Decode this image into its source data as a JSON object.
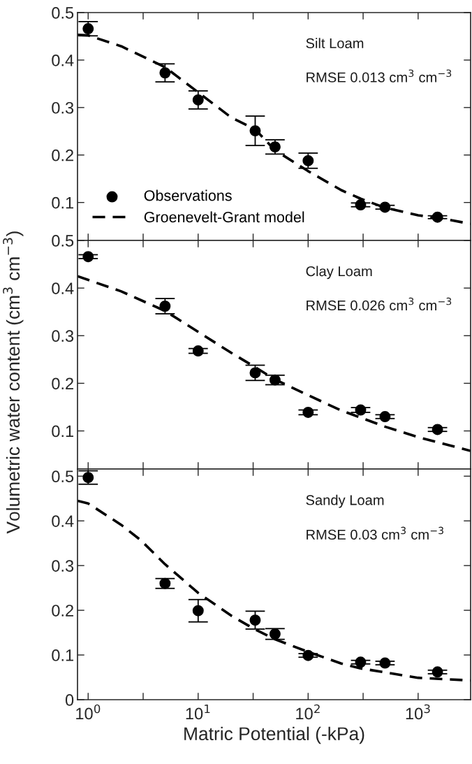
{
  "chart_data": [
    {
      "type": "scatter",
      "annotations": [
        "Silt Loam",
        "RMSE 0.013 cm$^{3}$ cm$^{−3}$"
      ],
      "log": "x",
      "xlim": [
        0.8,
        3000
      ],
      "ylim": [
        0.02,
        0.5
      ],
      "xticks": [
        {
          "value": 1,
          "label": null
        },
        {
          "value": 3.162,
          "label": null
        },
        {
          "value": 10,
          "label": null
        },
        {
          "value": 31.62,
          "label": null
        },
        {
          "value": 100,
          "label": null
        },
        {
          "value": 316.2,
          "label": null
        },
        {
          "value": 1000,
          "label": null
        }
      ],
      "yticks": [
        0.1,
        0.2,
        0.3,
        0.4,
        0.5
      ],
      "tick_labels": "y",
      "legend": "bottom left",
      "grid": false,
      "series": [
        {
          "name": "Observations",
          "color": "#000000",
          "marker": "circle",
          "x": [
            1,
            5,
            10,
            33,
            50,
            100,
            300,
            500,
            1500
          ],
          "values": [
            0.466,
            0.373,
            0.316,
            0.251,
            0.217,
            0.188,
            0.095,
            0.09,
            0.069
          ],
          "errors": [
            0.015,
            0.019,
            0.019,
            0.031,
            0.015,
            0.016,
            0.004,
            0.004,
            0.003
          ]
        },
        {
          "name": "Groenevelt-Grant model",
          "type": "line",
          "color": "#000000",
          "line_style": "dashed",
          "x": [
            0.8,
            1,
            2,
            5,
            10,
            20,
            33,
            50,
            100,
            200,
            300,
            500,
            1000,
            1500,
            3000
          ],
          "values": [
            0.453,
            0.452,
            0.429,
            0.385,
            0.332,
            0.279,
            0.254,
            0.21,
            0.166,
            0.126,
            0.108,
            0.089,
            0.073,
            0.068,
            0.055
          ]
        }
      ]
    },
    {
      "type": "scatter",
      "annotations": [
        "Clay Loam",
        "RMSE 0.026 cm$^{3}$ cm$^{−3}$"
      ],
      "ylabel": "Volumetric water content (cm$^{3}$ cm$^{−3}$)",
      "log": "x",
      "xlim": [
        0.8,
        3000
      ],
      "ylim": [
        0.02,
        0.5
      ],
      "xticks": [
        {
          "value": 1,
          "label": null
        },
        {
          "value": 3.162,
          "label": null
        },
        {
          "value": 10,
          "label": null
        },
        {
          "value": 31.62,
          "label": null
        },
        {
          "value": 100,
          "label": null
        },
        {
          "value": 316.2,
          "label": null
        },
        {
          "value": 1000,
          "label": null
        }
      ],
      "yticks": [
        0.1,
        0.2,
        0.3,
        0.4,
        0.5
      ],
      "tick_labels": "y",
      "grid": false,
      "series": [
        {
          "color": "#000000",
          "marker": "circle",
          "x": [
            1,
            5,
            10,
            33,
            50,
            100,
            300,
            500,
            1500
          ],
          "values": [
            0.466,
            0.362,
            0.268,
            0.222,
            0.207,
            0.139,
            0.144,
            0.13,
            0.103
          ],
          "errors": [
            0.004,
            0.016,
            0.005,
            0.016,
            0.01,
            0.005,
            0.005,
            0.004,
            0.004
          ]
        },
        {
          "type": "line",
          "color": "#000000",
          "line_style": "dashed",
          "x": [
            0.8,
            2,
            5,
            10,
            20,
            33,
            50,
            100,
            200,
            300,
            500,
            1000,
            3000
          ],
          "values": [
            0.425,
            0.393,
            0.352,
            0.308,
            0.264,
            0.234,
            0.208,
            0.175,
            0.143,
            0.128,
            0.109,
            0.087,
            0.058
          ]
        }
      ]
    },
    {
      "type": "scatter",
      "annotations": [
        "Sandy Loam",
        "RMSE 0.03 cm$^{3}$ cm$^{−3}$"
      ],
      "xlabel": "Matric Potential (-kPa)",
      "log": "x",
      "xlim": [
        0.8,
        3000
      ],
      "ylim": [
        0,
        0.516
      ],
      "xticks": [
        {
          "value": 1,
          "label": "10$^{0}$"
        },
        {
          "value": 3.162,
          "label": null
        },
        {
          "value": 10,
          "label": "10$^{1}$"
        },
        {
          "value": 31.62,
          "label": null
        },
        {
          "value": 100,
          "label": "10$^{2}$"
        },
        {
          "value": 316.2,
          "label": null
        },
        {
          "value": 1000,
          "label": "10$^{3}$"
        }
      ],
      "yticks": [
        0,
        0.1,
        0.2,
        0.3,
        0.4,
        0.5
      ],
      "grid": false,
      "series": [
        {
          "color": "#000000",
          "marker": "circle",
          "x": [
            1,
            5,
            10,
            33,
            50,
            100,
            300,
            500,
            1500
          ],
          "values": [
            0.497,
            0.26,
            0.199,
            0.178,
            0.147,
            0.099,
            0.084,
            0.082,
            0.062
          ],
          "errors": [
            0.015,
            0.011,
            0.025,
            0.02,
            0.012,
            0.004,
            0.004,
            0.004,
            0.004
          ]
        },
        {
          "type": "line",
          "color": "#000000",
          "line_style": "dashed",
          "x": [
            0.8,
            1,
            2,
            3,
            5,
            10,
            20,
            33,
            50,
            100,
            200,
            300,
            1000,
            3000
          ],
          "values": [
            0.445,
            0.439,
            0.391,
            0.357,
            0.303,
            0.239,
            0.188,
            0.157,
            0.135,
            0.107,
            0.081,
            0.07,
            0.049,
            0.043
          ]
        }
      ]
    }
  ]
}
